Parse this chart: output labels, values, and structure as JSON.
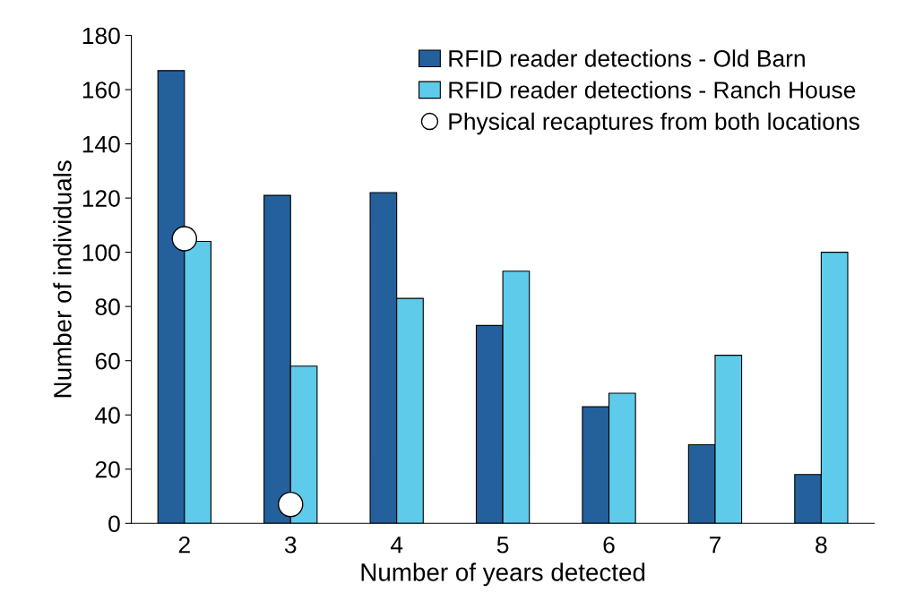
{
  "chart_data": {
    "type": "bar",
    "xlabel": "Number of years detected",
    "ylabel": "Number of individuals",
    "categories": [
      "2",
      "3",
      "4",
      "5",
      "6",
      "7",
      "8"
    ],
    "series": [
      {
        "name": "RFID reader detections - Old Barn",
        "color": "#24609c",
        "values": [
          167,
          121,
          122,
          73,
          43,
          29,
          18
        ]
      },
      {
        "name": "RFID reader detections - Ranch House",
        "color": "#5ecbeb",
        "values": [
          104,
          58,
          83,
          93,
          48,
          62,
          100
        ]
      },
      {
        "name": "Physical recaptures from both locations",
        "type": "scatter",
        "color": "#ffffff",
        "x": [
          "2",
          "3"
        ],
        "values": [
          105,
          7
        ]
      }
    ],
    "ylim": [
      0,
      180
    ],
    "yticks": [
      0,
      20,
      40,
      60,
      80,
      100,
      120,
      140,
      160,
      180
    ],
    "grid": false,
    "legend": "top right",
    "marker": "circle"
  }
}
